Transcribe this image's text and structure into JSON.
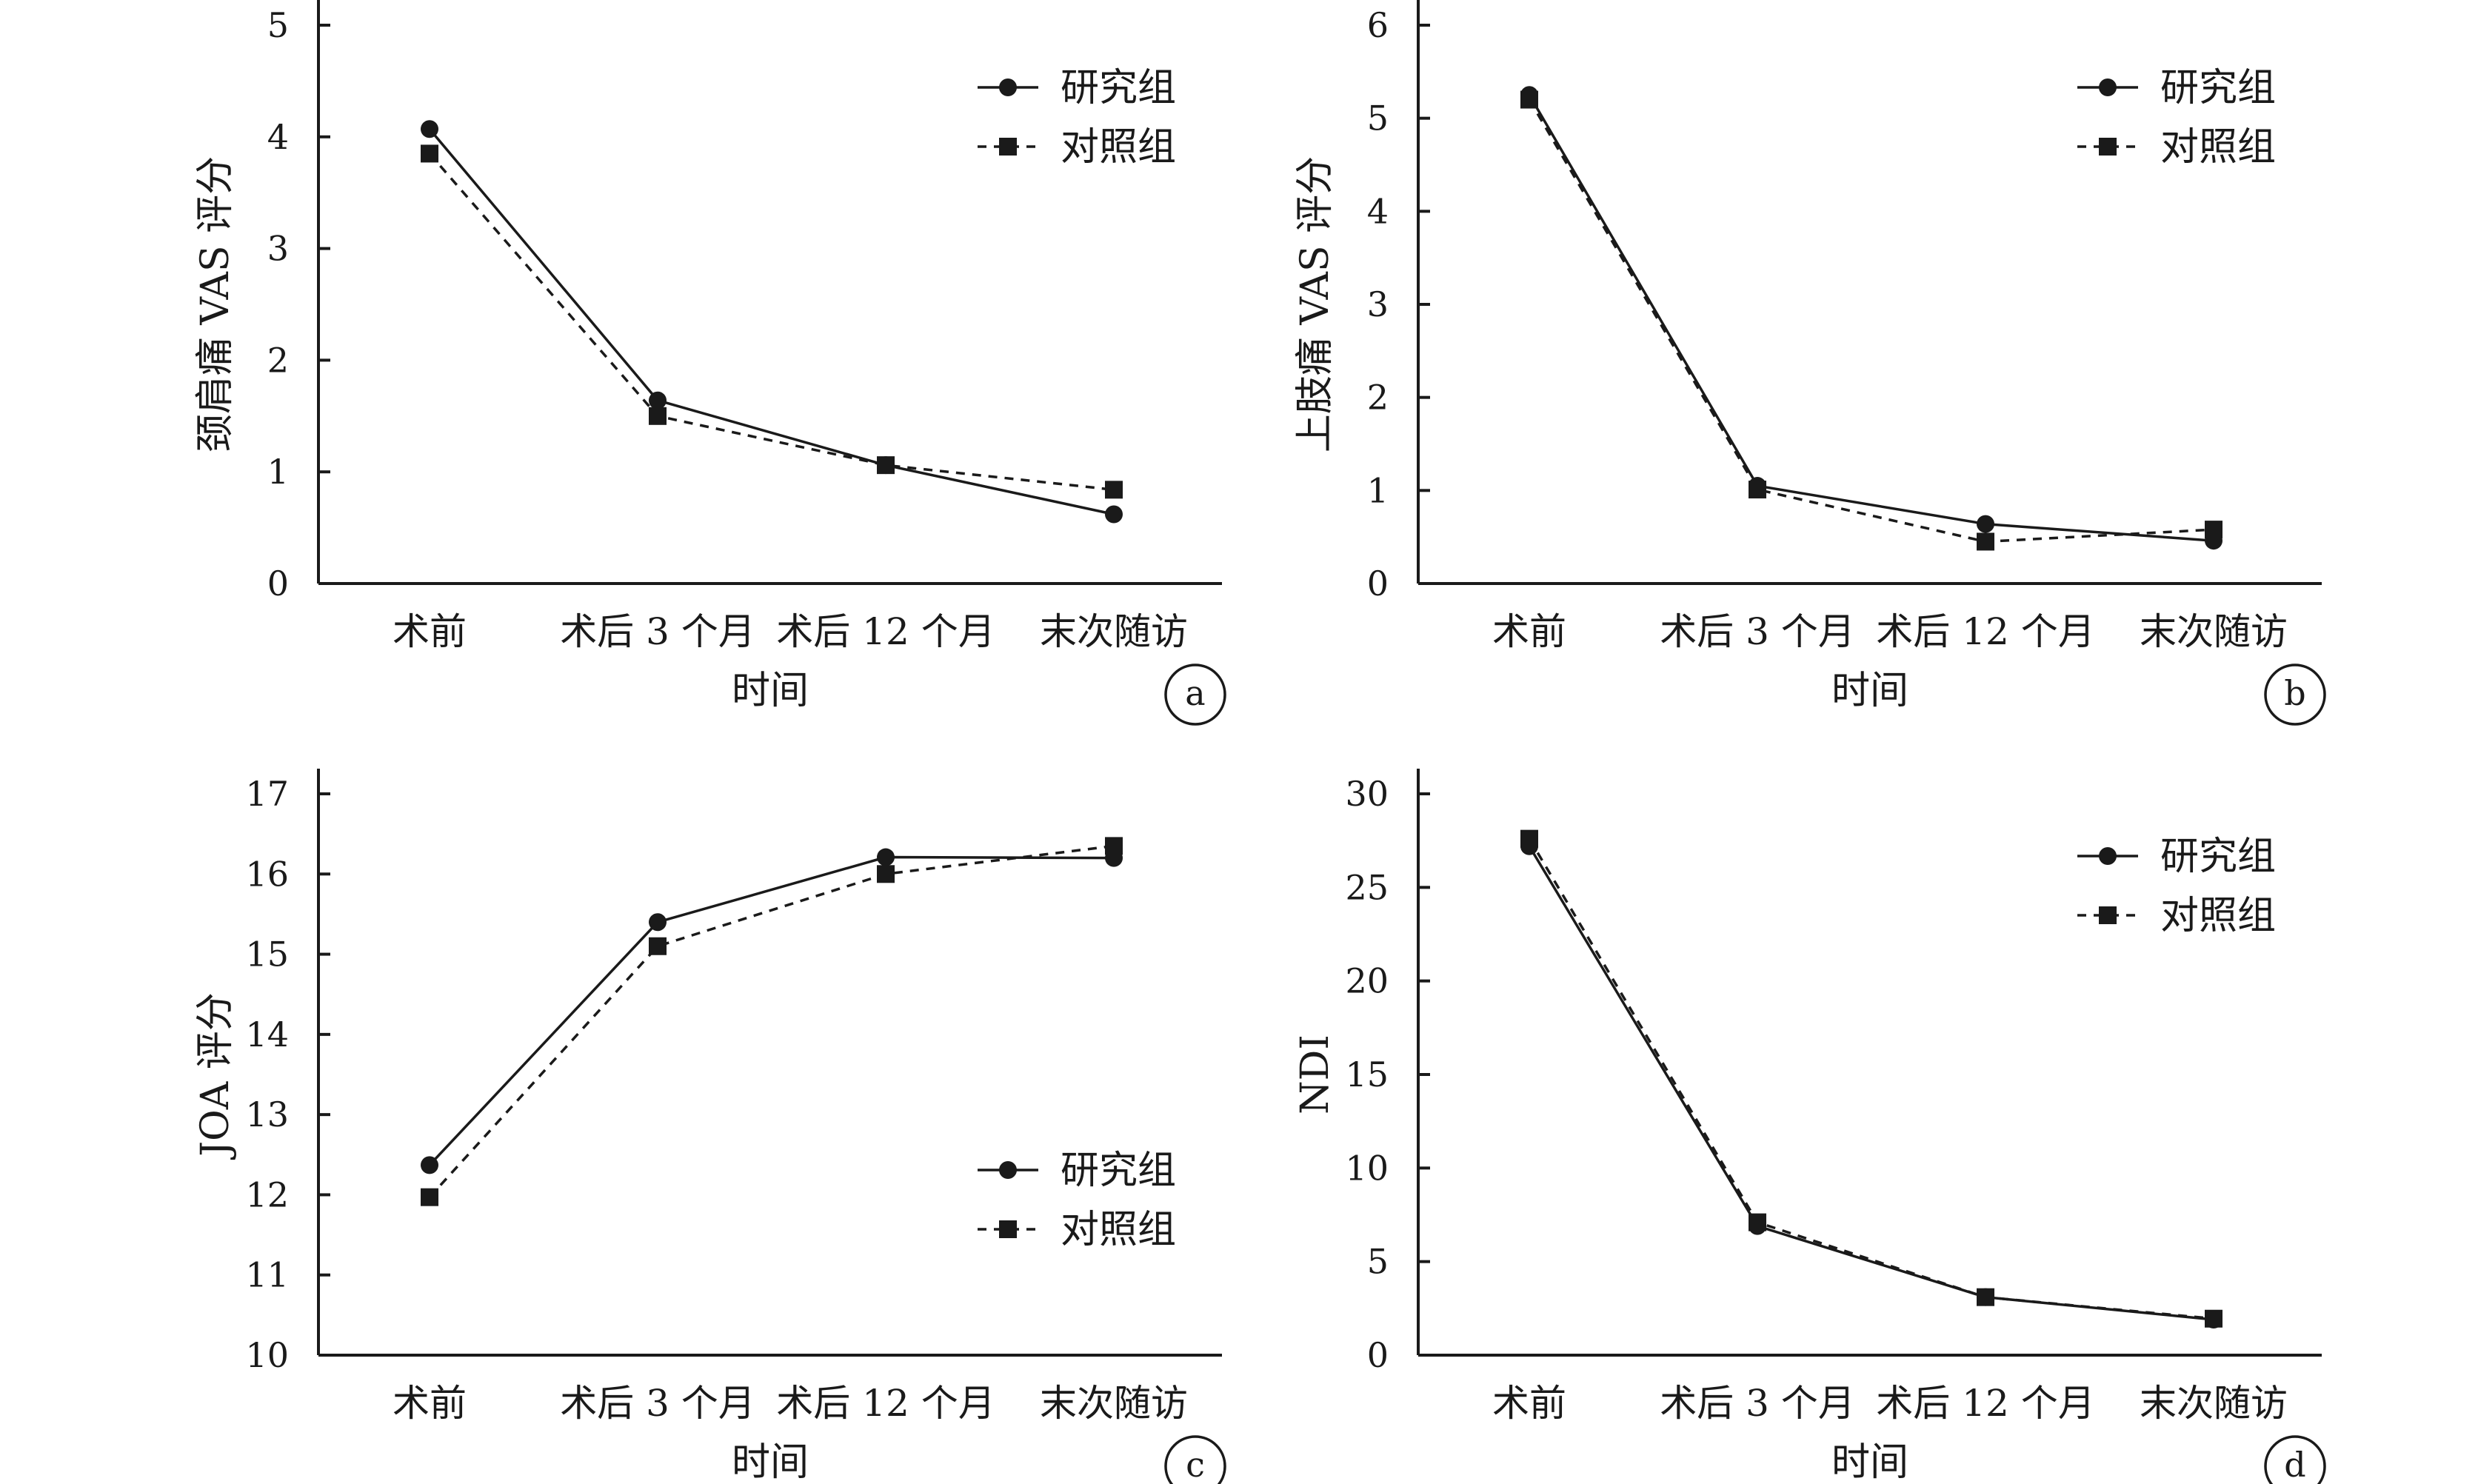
{
  "legend": {
    "study_label": "研究组",
    "control_label": "对照组"
  },
  "chart_data": [
    {
      "type": "line",
      "panel_label": "a",
      "xlabel": "时间",
      "ylabel": "颈肩痛 VAS 评分",
      "categories": [
        "术前",
        "术后 3 个月",
        "术后 12 个月",
        "末次随访"
      ],
      "ylim": [
        0,
        5
      ],
      "yticks": [
        0,
        1,
        2,
        3,
        4,
        5
      ],
      "legend_position": "top-right",
      "series": [
        {
          "name": "研究组",
          "style": "solid",
          "marker": "circle",
          "values": [
            4.07,
            1.64,
            1.06,
            0.62
          ]
        },
        {
          "name": "对照组",
          "style": "dashed",
          "marker": "square",
          "values": [
            3.85,
            1.5,
            1.06,
            0.84
          ]
        }
      ]
    },
    {
      "type": "line",
      "panel_label": "b",
      "xlabel": "时间",
      "ylabel": "上肢痛 VAS 评分",
      "categories": [
        "术前",
        "术后 3 个月",
        "术后 12 个月",
        "末次随访"
      ],
      "ylim": [
        0,
        6
      ],
      "yticks": [
        0,
        1,
        2,
        3,
        4,
        5,
        6
      ],
      "legend_position": "top-right",
      "series": [
        {
          "name": "研究组",
          "style": "solid",
          "marker": "circle",
          "values": [
            5.25,
            1.05,
            0.64,
            0.46
          ]
        },
        {
          "name": "对照组",
          "style": "dashed",
          "marker": "square",
          "values": [
            5.2,
            1.01,
            0.45,
            0.58
          ]
        }
      ]
    },
    {
      "type": "line",
      "panel_label": "c",
      "xlabel": "时间",
      "ylabel": "JOA 评分",
      "categories": [
        "术前",
        "术后 3 个月",
        "术后 12 个月",
        "末次随访"
      ],
      "ylim": [
        10,
        17
      ],
      "yticks": [
        10,
        11,
        12,
        13,
        14,
        15,
        16,
        17
      ],
      "legend_position": "bottom-right",
      "series": [
        {
          "name": "研究组",
          "style": "solid",
          "marker": "circle",
          "values": [
            12.37,
            15.4,
            16.21,
            16.2
          ]
        },
        {
          "name": "对照组",
          "style": "dashed",
          "marker": "square",
          "values": [
            11.97,
            15.1,
            16.0,
            16.35
          ]
        }
      ]
    },
    {
      "type": "line",
      "panel_label": "d",
      "xlabel": "时间",
      "ylabel": "NDI",
      "categories": [
        "术前",
        "术后 3 个月",
        "术后 12 个月",
        "末次随访"
      ],
      "ylim": [
        0,
        30
      ],
      "yticks": [
        0,
        5,
        10,
        15,
        20,
        25,
        30
      ],
      "legend_position": "top-right",
      "series": [
        {
          "name": "研究组",
          "style": "solid",
          "marker": "circle",
          "values": [
            27.2,
            6.9,
            3.1,
            1.9
          ]
        },
        {
          "name": "对照组",
          "style": "dashed",
          "marker": "square",
          "values": [
            27.6,
            7.1,
            3.1,
            1.95
          ]
        }
      ]
    }
  ]
}
